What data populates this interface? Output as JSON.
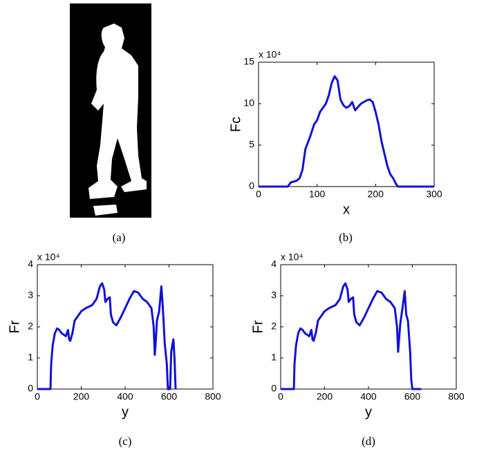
{
  "image_caption": "(a)",
  "chart_data": [
    {
      "type": "line",
      "caption": "(b)",
      "xlabel": "x",
      "ylabel": "Fc",
      "multiplier": "x 10⁴",
      "xlim": [
        0,
        300
      ],
      "xticks": [
        0,
        100,
        200,
        300
      ],
      "ylim": [
        0,
        15
      ],
      "yticks": [
        0,
        5,
        10,
        15
      ],
      "grid": false,
      "series": [
        {
          "color": "#1010d8",
          "x": [
            0,
            50,
            55,
            65,
            70,
            75,
            80,
            88,
            95,
            100,
            105,
            110,
            115,
            120,
            125,
            130,
            135,
            140,
            145,
            150,
            155,
            160,
            165,
            170,
            175,
            180,
            185,
            190,
            195,
            200,
            205,
            210,
            215,
            220,
            225,
            230,
            235,
            238,
            300
          ],
          "values": [
            0,
            0,
            0.5,
            0.7,
            1,
            2,
            4.5,
            6,
            7.5,
            8,
            9,
            9.5,
            10,
            11,
            12.5,
            13.3,
            12.8,
            10.5,
            9.8,
            9.5,
            9.7,
            10.2,
            9.2,
            9.6,
            10,
            10.2,
            10.4,
            10.5,
            10.2,
            9,
            7.5,
            5.5,
            4,
            2.5,
            1.5,
            1,
            0.3,
            0,
            0
          ]
        }
      ]
    },
    {
      "type": "line",
      "caption": "(c)",
      "xlabel": "y",
      "ylabel": "Fr",
      "multiplier": "x 10⁴",
      "xlim": [
        0,
        800
      ],
      "xticks": [
        0,
        200,
        400,
        600,
        800
      ],
      "ylim": [
        0,
        4
      ],
      "yticks": [
        0,
        1,
        2,
        3,
        4
      ],
      "grid": false,
      "series": [
        {
          "color": "#1010d8",
          "x": [
            0,
            60,
            63,
            70,
            80,
            90,
            100,
            110,
            120,
            130,
            140,
            145,
            150,
            160,
            170,
            180,
            200,
            220,
            250,
            270,
            285,
            295,
            305,
            310,
            320,
            330,
            335,
            345,
            360,
            380,
            400,
            420,
            440,
            460,
            480,
            500,
            520,
            530,
            535,
            540,
            545,
            555,
            565,
            570,
            575,
            580,
            590,
            595,
            605,
            610,
            620,
            625,
            630
          ],
          "values": [
            0,
            0,
            0.8,
            1.4,
            1.8,
            1.95,
            1.9,
            1.8,
            1.75,
            1.7,
            1.9,
            1.6,
            1.55,
            1.8,
            2.2,
            2.3,
            2.5,
            2.6,
            2.7,
            2.9,
            3.3,
            3.4,
            3.2,
            2.8,
            2.9,
            2.95,
            2.4,
            2.15,
            2.05,
            2.3,
            2.6,
            2.9,
            3.15,
            3.1,
            2.9,
            2.8,
            2.6,
            2.0,
            1.1,
            1.6,
            2.2,
            2.5,
            3.3,
            2.8,
            2.2,
            1.5,
            0.8,
            0,
            0,
            1.2,
            1.6,
            1.0,
            0
          ]
        }
      ]
    },
    {
      "type": "line",
      "caption": "(d)",
      "xlabel": "y",
      "ylabel": "Fr",
      "multiplier": "x 10⁴",
      "xlim": [
        0,
        800
      ],
      "xticks": [
        0,
        200,
        400,
        600,
        800
      ],
      "ylim": [
        0,
        4
      ],
      "yticks": [
        0,
        1,
        2,
        3,
        4
      ],
      "grid": false,
      "series": [
        {
          "color": "#1010d8",
          "x": [
            0,
            60,
            63,
            70,
            80,
            90,
            100,
            110,
            120,
            130,
            140,
            145,
            150,
            160,
            170,
            180,
            200,
            220,
            250,
            270,
            285,
            295,
            305,
            310,
            320,
            330,
            335,
            345,
            360,
            380,
            400,
            420,
            440,
            460,
            480,
            500,
            520,
            530,
            535,
            545,
            555,
            565,
            572,
            580,
            590,
            595,
            600,
            640
          ],
          "values": [
            0,
            0,
            0.8,
            1.4,
            1.8,
            1.95,
            1.9,
            1.8,
            1.75,
            1.7,
            1.9,
            1.6,
            1.55,
            1.8,
            2.2,
            2.3,
            2.5,
            2.6,
            2.7,
            2.9,
            3.3,
            3.4,
            3.2,
            2.8,
            2.9,
            2.95,
            2.4,
            2.15,
            2.05,
            2.3,
            2.6,
            2.9,
            3.15,
            3.1,
            2.9,
            2.8,
            2.6,
            2.0,
            1.2,
            2.1,
            2.6,
            3.15,
            2.4,
            2.2,
            1.2,
            0.3,
            0,
            0
          ]
        }
      ]
    }
  ]
}
